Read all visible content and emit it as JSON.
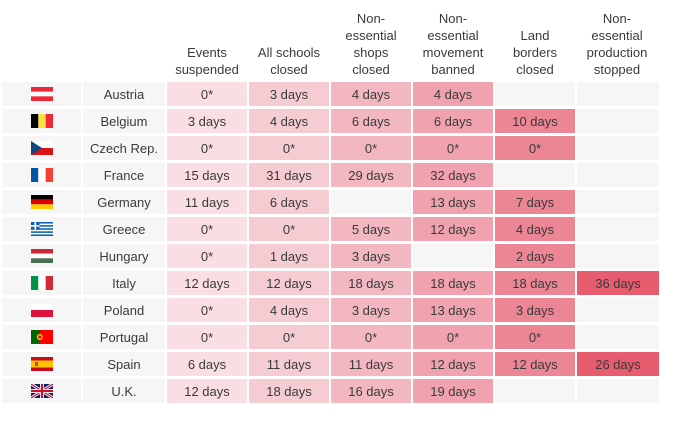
{
  "columns": [
    "Events\nsuspended",
    "All schools\nclosed",
    "Non-\nessential\nshops\nclosed",
    "Non-\nessential\nmovement\nbanned",
    "Land\nborders\nclosed",
    "Non-\nessential\nproduction\nstopped"
  ],
  "colors": {
    "c0": "#f9dfe3",
    "c1": "#f6ccd3",
    "c2": "#f3b7c1",
    "c3": "#f0a3af",
    "c4": "#ec8594",
    "c5": "#e85c70",
    "row_bg": "#f6f6f7"
  },
  "rows": [
    {
      "flag": "austria",
      "country": "Austria",
      "values": [
        "0*",
        "3 days",
        "4 days",
        "4 days",
        "",
        ""
      ]
    },
    {
      "flag": "belgium",
      "country": "Belgium",
      "values": [
        "3 days",
        "4 days",
        "6 days",
        "6 days",
        "10 days",
        ""
      ]
    },
    {
      "flag": "czech",
      "country": "Czech Rep.",
      "values": [
        "0*",
        "0*",
        "0*",
        "0*",
        "0*",
        ""
      ]
    },
    {
      "flag": "france",
      "country": "France",
      "values": [
        "15 days",
        "31 days",
        "29 days",
        "32 days",
        "",
        ""
      ]
    },
    {
      "flag": "germany",
      "country": "Germany",
      "values": [
        "11 days",
        "6 days",
        "",
        "13 days",
        "7 days",
        ""
      ]
    },
    {
      "flag": "greece",
      "country": "Greece",
      "values": [
        "0*",
        "0*",
        "5 days",
        "12 days",
        "4 days",
        ""
      ]
    },
    {
      "flag": "hungary",
      "country": "Hungary",
      "values": [
        "0*",
        "1 days",
        "3 days",
        "",
        "2 days",
        ""
      ]
    },
    {
      "flag": "italy",
      "country": "Italy",
      "values": [
        "12 days",
        "12 days",
        "18 days",
        "18 days",
        "18 days",
        "36 days"
      ]
    },
    {
      "flag": "poland",
      "country": "Poland",
      "values": [
        "0*",
        "4 days",
        "3 days",
        "13 days",
        "3 days",
        ""
      ]
    },
    {
      "flag": "portugal",
      "country": "Portugal",
      "values": [
        "0*",
        "0*",
        "0*",
        "0*",
        "0*",
        ""
      ]
    },
    {
      "flag": "spain",
      "country": "Spain",
      "values": [
        "6 days",
        "11 days",
        "11 days",
        "12 days",
        "12 days",
        "26 days"
      ]
    },
    {
      "flag": "uk",
      "country": "U.K.",
      "values": [
        "12 days",
        "18 days",
        "16 days",
        "19 days",
        "",
        ""
      ]
    }
  ]
}
